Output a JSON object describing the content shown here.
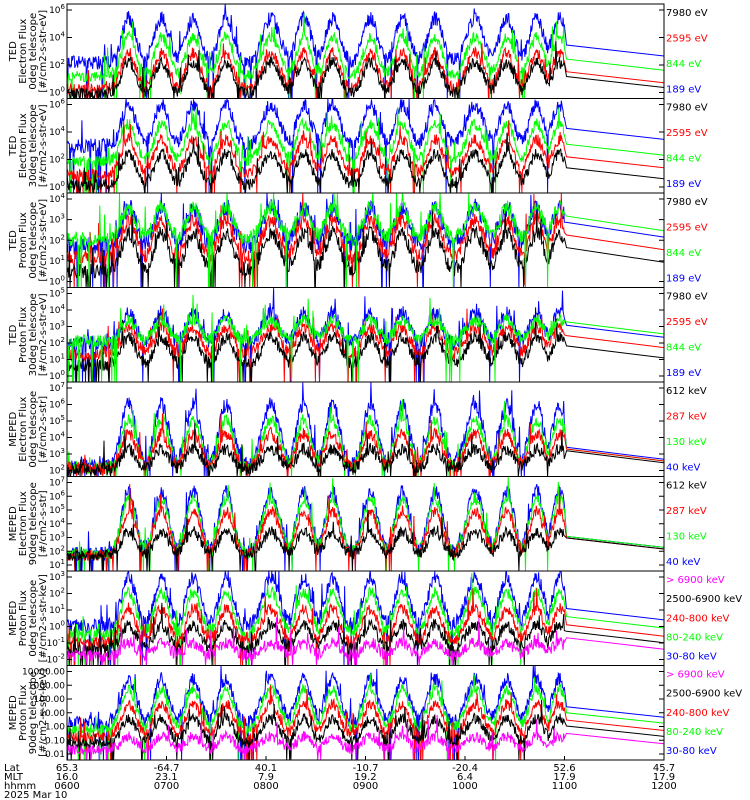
{
  "chart_data": {
    "type": "line",
    "panels": [
      {
        "ylabel": [
          "TED",
          "Electron Flux",
          "0deg telescope",
          "[#/cm2-s-str-eV]"
        ],
        "yticks": [
          "10^6",
          "10^4",
          "10^2",
          "10^0"
        ],
        "yrange_log10": [
          0,
          6
        ],
        "legend": [
          {
            "label": "7980 eV",
            "color": "#000000"
          },
          {
            "label": "2595 eV",
            "color": "#ff0000"
          },
          {
            "label": "844 eV",
            "color": "#00ff00"
          },
          {
            "label": "189 eV",
            "color": "#0000ff"
          }
        ],
        "series": [
          {
            "color": "#0000ff",
            "base": 2.3,
            "amp": 2.8
          },
          {
            "color": "#00ff00",
            "base": 1.4,
            "amp": 2.5
          },
          {
            "color": "#ff0000",
            "base": 0.6,
            "amp": 2.3
          },
          {
            "color": "#000000",
            "base": 0.3,
            "amp": 2.0
          }
        ]
      },
      {
        "ylabel": [
          "TED",
          "Electron Flux",
          "30deg telescope",
          "[#/cm2-s-str-eV]"
        ],
        "yticks": [
          "10^6",
          "10^4",
          "10^2",
          "10^0"
        ],
        "yrange_log10": [
          0,
          6
        ],
        "legend": [
          {
            "label": "7980 eV",
            "color": "#000000"
          },
          {
            "label": "2595 eV",
            "color": "#ff0000"
          },
          {
            "label": "844 eV",
            "color": "#00ff00"
          },
          {
            "label": "189 eV",
            "color": "#0000ff"
          }
        ],
        "series": [
          {
            "color": "#0000ff",
            "base": 3.0,
            "amp": 2.6
          },
          {
            "color": "#00ff00",
            "base": 2.0,
            "amp": 2.4
          },
          {
            "color": "#ff0000",
            "base": 1.2,
            "amp": 2.2
          },
          {
            "color": "#000000",
            "base": 0.5,
            "amp": 2.0
          }
        ]
      },
      {
        "ylabel": [
          "TED",
          "Proton Flux",
          "0deg telescope",
          "[#/cm2-s-str-eV]"
        ],
        "yticks": [
          "10^4",
          "10^3",
          "10^2",
          "10^1",
          "10^0"
        ],
        "yrange_log10": [
          0,
          4.5
        ],
        "legend": [
          {
            "label": "7980 eV",
            "color": "#000000"
          },
          {
            "label": "2595 eV",
            "color": "#ff0000"
          },
          {
            "label": "844 eV",
            "color": "#00ff00"
          },
          {
            "label": "189 eV",
            "color": "#0000ff"
          }
        ],
        "series": [
          {
            "color": "#0000ff",
            "base": 2.0,
            "amp": 1.8
          },
          {
            "color": "#ff0000",
            "base": 1.4,
            "amp": 1.8
          },
          {
            "color": "#000000",
            "base": 0.8,
            "amp": 1.8
          },
          {
            "color": "#00ff00",
            "base": 2.3,
            "amp": 1.5
          }
        ]
      },
      {
        "ylabel": [
          "TED",
          "Proton Flux",
          "30deg telescope",
          "[#/cm2-s-str-eV]"
        ],
        "yticks": [
          "10^5",
          "10^4",
          "10^3",
          "10^2",
          "10^1",
          "10^0"
        ],
        "yrange_log10": [
          0,
          5.5
        ],
        "legend": [
          {
            "label": "7980 eV",
            "color": "#000000"
          },
          {
            "label": "2595 eV",
            "color": "#ff0000"
          },
          {
            "label": "844 eV",
            "color": "#00ff00"
          },
          {
            "label": "189 eV",
            "color": "#0000ff"
          }
        ],
        "series": [
          {
            "color": "#0000ff",
            "base": 2.2,
            "amp": 1.8
          },
          {
            "color": "#ff0000",
            "base": 1.6,
            "amp": 1.6
          },
          {
            "color": "#000000",
            "base": 1.0,
            "amp": 1.6
          },
          {
            "color": "#00ff00",
            "base": 2.4,
            "amp": 1.2
          }
        ]
      },
      {
        "ylabel": [
          "MEPED",
          "Electron Flux",
          "0deg telescope",
          "[#/cm2-s-str]"
        ],
        "yticks": [
          "10^7",
          "10^6",
          "10^5",
          "10^4",
          "10^3",
          "10^2"
        ],
        "yrange_log10": [
          1.5,
          7
        ],
        "legend": [
          {
            "label": "612 keV",
            "color": "#000000"
          },
          {
            "label": "287 keV",
            "color": "#ff0000"
          },
          {
            "label": "130 keV",
            "color": "#00ff00"
          },
          {
            "label": "40 keV",
            "color": "#0000ff"
          }
        ],
        "series": [
          {
            "color": "#0000ff",
            "base": 2.1,
            "amp": 3.6
          },
          {
            "color": "#00ff00",
            "base": 2.0,
            "amp": 2.8
          },
          {
            "color": "#ff0000",
            "base": 2.0,
            "amp": 2.0
          },
          {
            "color": "#000000",
            "base": 1.9,
            "amp": 1.2
          }
        ]
      },
      {
        "ylabel": [
          "MEPED",
          "Electron Flux",
          "90deg telescope",
          "[#/cm2-s-str]"
        ],
        "yticks": [
          "10^7",
          "10^6",
          "10^5",
          "10^4",
          "10^3",
          "10^2",
          "10^1"
        ],
        "yrange_log10": [
          1,
          7
        ],
        "legend": [
          {
            "label": "612 keV",
            "color": "#000000"
          },
          {
            "label": "287 keV",
            "color": "#ff0000"
          },
          {
            "label": "130 keV",
            "color": "#00ff00"
          },
          {
            "label": "40 keV",
            "color": "#0000ff"
          }
        ],
        "series": [
          {
            "color": "#0000ff",
            "base": 2.1,
            "amp": 4.0
          },
          {
            "color": "#00ff00",
            "base": 2.1,
            "amp": 3.5
          },
          {
            "color": "#ff0000",
            "base": 2.0,
            "amp": 2.8
          },
          {
            "color": "#000000",
            "base": 2.0,
            "amp": 1.5
          }
        ]
      },
      {
        "ylabel": [
          "MEPED",
          "Proton Flux",
          "0deg telescope",
          "[#/cm2-s-str-keV]"
        ],
        "yticks": [
          "10^3",
          "10^2",
          "10^1",
          "10^0",
          "10^-1",
          "10^-2"
        ],
        "yrange_log10": [
          -2.3,
          3.5
        ],
        "legend": [
          {
            "label": "> 6900 keV",
            "color": "#ff00ff"
          },
          {
            "label": "2500-6900 keV",
            "color": "#000000"
          },
          {
            "label": "240-800 keV",
            "color": "#ff0000"
          },
          {
            "label": "80-240 keV",
            "color": "#00ff00"
          },
          {
            "label": "30-80 keV",
            "color": "#0000ff"
          }
        ],
        "series": [
          {
            "color": "#0000ff",
            "base": 0.1,
            "amp": 3.0
          },
          {
            "color": "#00ff00",
            "base": -0.4,
            "amp": 2.6
          },
          {
            "color": "#ff0000",
            "base": -0.9,
            "amp": 2.1
          },
          {
            "color": "#000000",
            "base": -1.3,
            "amp": 1.5
          },
          {
            "color": "#ff00ff",
            "base": -1.7,
            "amp": 0.8
          }
        ]
      },
      {
        "ylabel": [
          "MEPED",
          "Proton Flux",
          "90deg telescope",
          "[#/cm2-s-str-keV]"
        ],
        "yticks": [
          "10000.00",
          "1000.00",
          "100.00",
          "10.00",
          "1.00",
          "0.10",
          "0.01"
        ],
        "yrange_log10": [
          -2.2,
          4.2
        ],
        "legend": [
          {
            "label": "> 6900 keV",
            "color": "#ff00ff"
          },
          {
            "label": "2500-6900 keV",
            "color": "#000000"
          },
          {
            "label": "240-800 keV",
            "color": "#ff0000"
          },
          {
            "label": "80-240 keV",
            "color": "#00ff00"
          },
          {
            "label": "30-80 keV",
            "color": "#0000ff"
          }
        ],
        "series": [
          {
            "color": "#0000ff",
            "base": 0.3,
            "amp": 3.0
          },
          {
            "color": "#00ff00",
            "base": -0.1,
            "amp": 2.7
          },
          {
            "color": "#ff0000",
            "base": -0.6,
            "amp": 2.2
          },
          {
            "color": "#000000",
            "base": -1.0,
            "amp": 1.6
          },
          {
            "color": "#ff00ff",
            "base": -1.5,
            "amp": 0.9
          }
        ]
      }
    ],
    "x_axis": {
      "row_labels": [
        "Lat",
        "MLT",
        "hhmm",
        "2025 Mar 10"
      ],
      "ticks": [
        {
          "t": 0,
          "lat": "65.3",
          "mlt": "16.0",
          "hhmm": "0600"
        },
        {
          "t": 1,
          "lat": "-64.7",
          "mlt": "23.1",
          "hhmm": "0700"
        },
        {
          "t": 2,
          "lat": "40.1",
          "mlt": "7.9",
          "hhmm": "0800"
        },
        {
          "t": 3,
          "lat": "-10.7",
          "mlt": "19.2",
          "hhmm": "0900"
        },
        {
          "t": 4,
          "lat": "-20.4",
          "mlt": "6.4",
          "hhmm": "1000"
        },
        {
          "t": 5,
          "lat": "52.6",
          "mlt": "17.9",
          "hhmm": "1100"
        },
        {
          "t": 6,
          "lat": "45.7",
          "mlt": "17.9",
          "hhmm": "1200"
        }
      ],
      "range_hours": [
        0,
        6
      ],
      "data_end_hours": 5.0
    },
    "events_hours": [
      0.62,
      0.95,
      1.27,
      1.6,
      2.05,
      2.38,
      2.67,
      3.05,
      3.37,
      3.7,
      4.1,
      4.42,
      4.72,
      4.95
    ],
    "big_events_hours": [
      2.05,
      4.1
    ]
  }
}
